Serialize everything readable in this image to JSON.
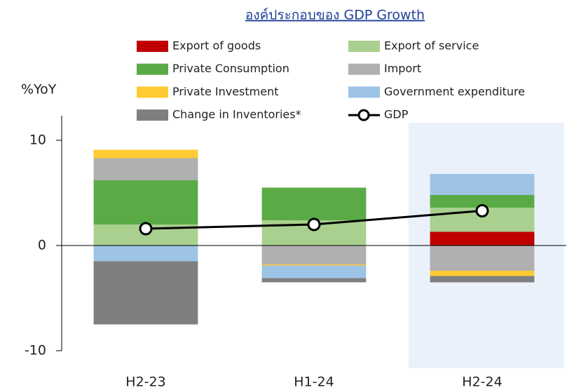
{
  "chart_data": {
    "type": "bar",
    "stacked": true,
    "title": "องค์ประกอบของ GDP Growth",
    "y_label": "%YoY",
    "categories": [
      "H2-23",
      "H1-24",
      "H2-24"
    ],
    "series": [
      {
        "name": "Export of goods",
        "color": "#c00000",
        "values": [
          0,
          0,
          1.3
        ]
      },
      {
        "name": "Export of service",
        "color": "#a9d08e",
        "values": [
          2.0,
          2.4,
          2.3
        ]
      },
      {
        "name": "Private Consumption",
        "color": "#5aab46",
        "values": [
          4.2,
          3.1,
          1.2
        ]
      },
      {
        "name": "Import",
        "color": "#b0b0b0",
        "values": [
          2.1,
          -1.8,
          -2.4
        ]
      },
      {
        "name": "Private Investment",
        "color": "#ffca33",
        "values": [
          0.8,
          -0.1,
          -0.5
        ]
      },
      {
        "name": "Government expenditure",
        "color": "#9dc3e6",
        "values": [
          -1.5,
          -1.2,
          2.0
        ]
      },
      {
        "name": "Change in Inventories*",
        "color": "#7f7f7f",
        "values": [
          -6.0,
          -0.4,
          -0.6
        ]
      },
      {
        "name": "GDP",
        "type": "line",
        "color": "#000000",
        "values": [
          1.6,
          2.0,
          3.3
        ]
      }
    ],
    "ylim": [
      -10,
      12
    ],
    "yticks": [
      -10,
      0,
      10
    ]
  }
}
